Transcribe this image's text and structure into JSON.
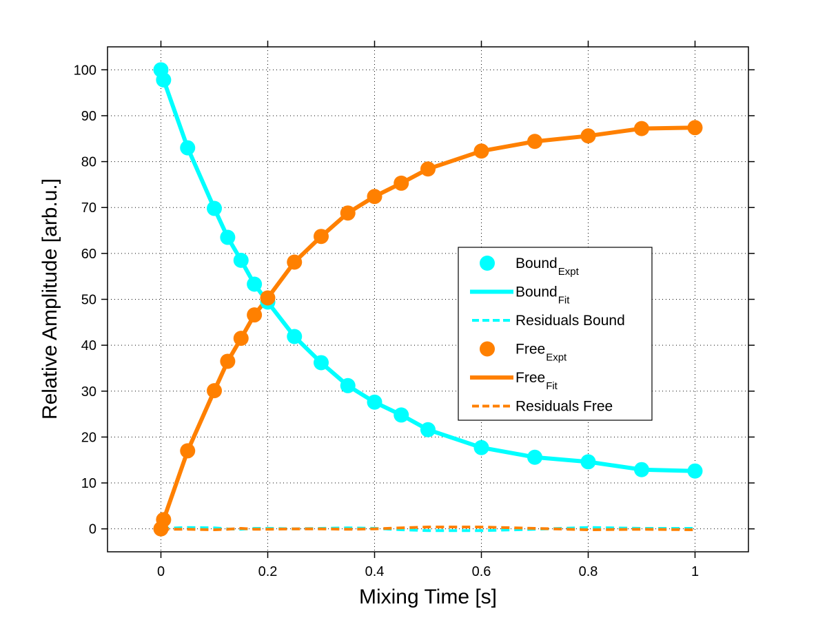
{
  "chart_data": {
    "type": "line",
    "title": "",
    "xlabel": "Mixing Time [s]",
    "ylabel": "Relative Amplitude [arb.u.]",
    "xlim": [
      -0.1,
      1.1
    ],
    "ylim": [
      -5,
      105
    ],
    "xticks": [
      0,
      0.2,
      0.4,
      0.6,
      0.8,
      1
    ],
    "xtick_labels": [
      "0",
      "0.2",
      "0.4",
      "0.6",
      "0.8",
      "1"
    ],
    "yticks": [
      0,
      10,
      20,
      30,
      40,
      50,
      60,
      70,
      80,
      90,
      100
    ],
    "ytick_labels": [
      "0",
      "10",
      "20",
      "30",
      "40",
      "50",
      "60",
      "70",
      "80",
      "90",
      "100"
    ],
    "grid": true,
    "legend_position": "center-right",
    "x": [
      0,
      0.005,
      0.05,
      0.1,
      0.125,
      0.15,
      0.175,
      0.2,
      0.25,
      0.3,
      0.35,
      0.4,
      0.45,
      0.5,
      0.6,
      0.7,
      0.8,
      0.9,
      1.0
    ],
    "series": [
      {
        "name": "Bound_Expt",
        "label_main": "Bound",
        "label_sub": "Expt",
        "kind": "markers",
        "color": "#00FFFF",
        "values": [
          100,
          97.8,
          83.0,
          69.8,
          63.5,
          58.5,
          53.3,
          49.4,
          41.9,
          36.2,
          31.2,
          27.6,
          24.8,
          21.6,
          17.7,
          15.6,
          14.6,
          12.9,
          12.6
        ]
      },
      {
        "name": "Bound_Fit",
        "label_main": "Bound",
        "label_sub": "Fit",
        "kind": "solid",
        "color": "#00FFFF",
        "values": [
          100,
          97.8,
          83.0,
          69.8,
          63.5,
          58.5,
          53.3,
          49.4,
          41.9,
          36.2,
          31.2,
          27.6,
          24.8,
          21.6,
          17.7,
          15.6,
          14.6,
          12.9,
          12.6
        ]
      },
      {
        "name": "Residuals Bound",
        "label_main": "Residuals Bound",
        "label_sub": "",
        "kind": "dashed",
        "color": "#00FFFF",
        "values": [
          0,
          0.1,
          0.3,
          0.2,
          0,
          -0.1,
          0.1,
          0.1,
          0,
          0.1,
          0.2,
          0.1,
          -0.2,
          -0.4,
          -0.4,
          -0.1,
          0.3,
          0.1,
          0.1
        ]
      },
      {
        "name": "Free_Expt",
        "label_main": "Free",
        "label_sub": "Expt",
        "kind": "markers",
        "color": "#FF8000",
        "values": [
          0,
          2.0,
          17.0,
          30.1,
          36.5,
          41.5,
          46.6,
          50.3,
          58.1,
          63.7,
          68.8,
          72.4,
          75.3,
          78.4,
          82.3,
          84.4,
          85.6,
          87.2,
          87.4
        ]
      },
      {
        "name": "Free_Fit",
        "label_main": "Free",
        "label_sub": "Fit",
        "kind": "solid",
        "color": "#FF8000",
        "values": [
          0,
          2.0,
          17.0,
          30.1,
          36.5,
          41.5,
          46.6,
          50.3,
          58.1,
          63.7,
          68.8,
          72.4,
          75.3,
          78.4,
          82.3,
          84.4,
          85.6,
          87.2,
          87.4
        ]
      },
      {
        "name": "Residuals Free",
        "label_main": "Residuals Free",
        "label_sub": "",
        "kind": "dashed",
        "color": "#FF8000",
        "values": [
          0,
          -0.1,
          -0.1,
          -0.2,
          -0.1,
          0.1,
          -0.1,
          -0.1,
          0,
          0,
          -0.1,
          0,
          0.2,
          0.4,
          0.4,
          0.1,
          -0.2,
          -0.1,
          -0.2
        ]
      }
    ]
  }
}
